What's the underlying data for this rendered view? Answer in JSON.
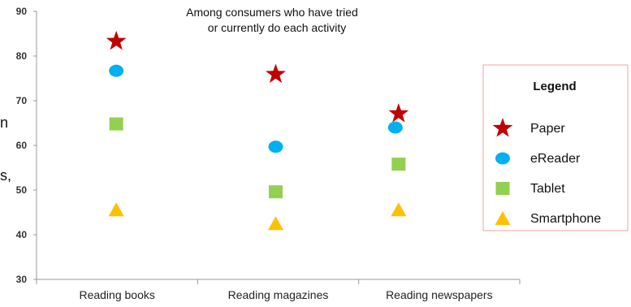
{
  "chart_data": {
    "type": "scatter",
    "annotation": [
      "Among consumers who have tried",
      "or currently do each activity"
    ],
    "categories": [
      "Reading books",
      "Reading magazines",
      "Reading newspapers"
    ],
    "ylim": [
      30,
      90
    ],
    "yticks": [
      "30",
      "40",
      "50",
      "60",
      "70",
      "80",
      "90"
    ],
    "legend_title": "Legend",
    "legend_position": "right",
    "series": [
      {
        "name": "Paper",
        "marker": "star",
        "color": "#c00000",
        "values": [
          83.3,
          75.9,
          67.1
        ]
      },
      {
        "name": "eReader",
        "marker": "circle",
        "color": "#00b0f0",
        "values": [
          76.7,
          59.7,
          64.0
        ]
      },
      {
        "name": "Tablet",
        "marker": "square",
        "color": "#92d050",
        "values": [
          64.8,
          49.6,
          55.8
        ]
      },
      {
        "name": "Smartphone",
        "marker": "triangle",
        "color": "#ffc000",
        "values": [
          45.6,
          42.5,
          45.6
        ]
      }
    ],
    "cut_off_text": [
      "n",
      "s,"
    ]
  }
}
